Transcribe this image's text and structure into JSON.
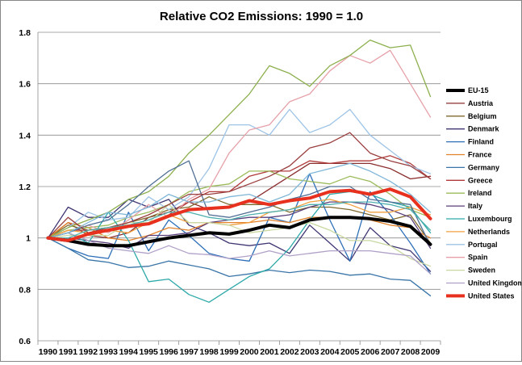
{
  "chart_data": {
    "type": "line",
    "title": "Relative CO2 Emissions: 1990 = 1.0",
    "xlabel": "",
    "ylabel": "",
    "ylim": [
      0.6,
      1.8
    ],
    "yticks": [
      "0.6",
      "0.8",
      "1",
      "1.2",
      "1.4",
      "1.6",
      "1.8"
    ],
    "grid": "horizontal",
    "legend": "right",
    "categories": [
      "1990",
      "1991",
      "1992",
      "1993",
      "1994",
      "1995",
      "1996",
      "1997",
      "1998",
      "1999",
      "2000",
      "2001",
      "2002",
      "2003",
      "2004",
      "2005",
      "2006",
      "2007",
      "2008",
      "2009"
    ],
    "series": [
      {
        "name": "EU-15",
        "color": "#000000",
        "width": 4,
        "values": [
          1.0,
          0.99,
          0.975,
          0.97,
          0.97,
          0.985,
          1.0,
          1.01,
          1.02,
          1.015,
          1.03,
          1.05,
          1.04,
          1.07,
          1.08,
          1.08,
          1.075,
          1.065,
          1.045,
          0.975
        ]
      },
      {
        "name": "Austria",
        "color": "#8B2E2E",
        "width": 1.3,
        "values": [
          1.0,
          1.06,
          1.01,
          1.0,
          1.02,
          1.08,
          1.1,
          1.14,
          1.11,
          1.12,
          1.14,
          1.19,
          1.24,
          1.29,
          1.29,
          1.29,
          1.29,
          1.27,
          1.23,
          1.24
        ]
      },
      {
        "name": "Belgium",
        "color": "#7F6A2E",
        "width": 1.3,
        "values": [
          1.0,
          1.05,
          1.03,
          1.04,
          1.06,
          1.08,
          1.11,
          1.12,
          1.16,
          1.13,
          1.13,
          1.13,
          1.1,
          1.12,
          1.12,
          1.11,
          1.09,
          1.07,
          1.09,
          0.98
        ]
      },
      {
        "name": "Denmark",
        "color": "#3F3572",
        "width": 1.3,
        "values": [
          1.0,
          1.12,
          1.08,
          1.08,
          1.15,
          1.12,
          1.15,
          1.05,
          1.02,
          0.98,
          0.97,
          0.98,
          0.94,
          1.05,
          0.98,
          0.91,
          1.04,
          0.97,
          0.95,
          0.87
        ]
      },
      {
        "name": "Finland",
        "color": "#2E70B8",
        "width": 1.3,
        "values": [
          1.0,
          0.96,
          0.93,
          0.92,
          1.1,
          0.95,
          1.07,
          1.01,
          0.94,
          0.92,
          0.91,
          1.08,
          1.06,
          1.25,
          1.07,
          0.91,
          1.18,
          1.09,
          0.98,
          0.86
        ]
      },
      {
        "name": "France",
        "color": "#E3822A",
        "width": 1.3,
        "values": [
          1.0,
          1.06,
          1.04,
          1.0,
          0.99,
          1.01,
          1.04,
          1.03,
          1.06,
          1.06,
          1.06,
          1.07,
          1.06,
          1.08,
          1.08,
          1.08,
          1.07,
          1.05,
          1.04,
          1.0
        ]
      },
      {
        "name": "Germany",
        "color": "#3A75A8",
        "width": 1.3,
        "values": [
          1.0,
          0.96,
          0.915,
          0.905,
          0.885,
          0.89,
          0.91,
          0.895,
          0.88,
          0.85,
          0.86,
          0.875,
          0.865,
          0.875,
          0.87,
          0.855,
          0.86,
          0.84,
          0.835,
          0.775
        ]
      },
      {
        "name": "Greece",
        "color": "#B03A3A",
        "width": 1.3,
        "values": [
          1.0,
          1.03,
          1.03,
          1.04,
          1.05,
          1.06,
          1.09,
          1.14,
          1.18,
          1.18,
          1.24,
          1.26,
          1.26,
          1.3,
          1.29,
          1.3,
          1.3,
          1.32,
          1.29,
          1.23
        ]
      },
      {
        "name": "Ireland",
        "color": "#9BBB59",
        "width": 1.3,
        "values": [
          1.0,
          1.03,
          1.04,
          1.05,
          1.08,
          1.1,
          1.13,
          1.18,
          1.2,
          1.21,
          1.26,
          1.26,
          1.23,
          1.22,
          1.21,
          1.24,
          1.22,
          1.17,
          1.11,
          1.08
        ]
      },
      {
        "name": "Italy",
        "color": "#5A3F7A",
        "width": 1.3,
        "values": [
          1.0,
          1.0,
          0.99,
          0.98,
          0.96,
          1.01,
          1.01,
          1.02,
          1.06,
          1.07,
          1.08,
          1.08,
          1.09,
          1.12,
          1.14,
          1.14,
          1.13,
          1.11,
          1.08,
          0.96
        ]
      },
      {
        "name": "Luxembourg",
        "color": "#2EA9A9",
        "width": 1.3,
        "values": [
          1.0,
          1.02,
          0.98,
          1.1,
          0.99,
          0.83,
          0.84,
          0.78,
          0.75,
          0.8,
          0.85,
          0.88,
          0.96,
          1.07,
          1.17,
          1.18,
          1.17,
          1.14,
          1.12,
          1.02
        ]
      },
      {
        "name": "Netherlands",
        "color": "#F0A040",
        "width": 1.3,
        "values": [
          1.0,
          1.03,
          1.02,
          1.03,
          1.02,
          1.06,
          1.09,
          1.06,
          1.06,
          1.05,
          1.06,
          1.1,
          1.11,
          1.14,
          1.15,
          1.13,
          1.1,
          1.1,
          1.12,
          1.09
        ]
      },
      {
        "name": "Portugal",
        "color": "#9DC3E6",
        "width": 1.3,
        "values": [
          1.0,
          1.04,
          1.1,
          1.07,
          1.08,
          1.16,
          1.11,
          1.16,
          1.27,
          1.44,
          1.44,
          1.4,
          1.5,
          1.41,
          1.44,
          1.5,
          1.4,
          1.34,
          1.28,
          1.25
        ]
      },
      {
        "name": "Spain",
        "color": "#E6A0A8",
        "width": 1.3,
        "values": [
          1.0,
          1.02,
          1.05,
          1.02,
          1.07,
          1.13,
          1.08,
          1.15,
          1.19,
          1.33,
          1.42,
          1.44,
          1.53,
          1.56,
          1.65,
          1.71,
          1.68,
          1.73,
          1.6,
          1.47
        ]
      },
      {
        "name": "Sweden",
        "color": "#C8D8A0",
        "width": 1.3,
        "values": [
          1.0,
          1.01,
          1.01,
          1.01,
          1.06,
          1.06,
          1.13,
          1.06,
          1.06,
          1.05,
          1.02,
          1.03,
          1.04,
          1.06,
          1.03,
          0.99,
          0.99,
          0.97,
          0.92,
          0.89
        ]
      },
      {
        "name": "United Kingdom",
        "color": "#B0A0C8",
        "width": 1.3,
        "values": [
          1.0,
          1.02,
          0.99,
          0.96,
          0.95,
          0.94,
          0.97,
          0.94,
          0.935,
          0.92,
          0.93,
          0.95,
          0.93,
          0.94,
          0.95,
          0.95,
          0.95,
          0.94,
          0.93,
          0.86
        ]
      },
      {
        "name": "United States",
        "color": "#E8301E",
        "width": 4,
        "values": [
          1.0,
          0.99,
          1.015,
          1.03,
          1.045,
          1.055,
          1.085,
          1.11,
          1.115,
          1.12,
          1.145,
          1.13,
          1.145,
          1.155,
          1.18,
          1.185,
          1.17,
          1.19,
          1.16,
          1.075
        ]
      },
      {
        "name": "",
        "color": "#8DB04E",
        "width": 1.3,
        "values": [
          1.0,
          1.04,
          1.07,
          1.1,
          1.15,
          1.18,
          1.24,
          1.33,
          1.4,
          1.48,
          1.56,
          1.67,
          1.64,
          1.59,
          1.67,
          1.71,
          1.77,
          1.74,
          1.75,
          1.55
        ]
      },
      {
        "name": "",
        "color": "#4F6E94",
        "width": 1.3,
        "values": [
          1.0,
          1.02,
          1.05,
          1.07,
          1.13,
          1.2,
          1.26,
          1.3,
          1.09,
          1.08,
          1.1,
          1.12,
          1.15,
          1.17,
          1.2,
          1.2,
          1.15,
          1.14,
          1.13,
          0.97
        ]
      },
      {
        "name": "",
        "color": "#9A3E3E",
        "width": 1.3,
        "values": [
          1.0,
          1.08,
          1.02,
          1.04,
          1.06,
          1.09,
          1.13,
          1.17,
          1.17,
          1.18,
          1.21,
          1.24,
          1.28,
          1.35,
          1.37,
          1.41,
          1.33,
          1.3,
          1.28,
          1.23
        ]
      },
      {
        "name": "",
        "color": "#7FB6D8",
        "width": 1.3,
        "values": [
          1.0,
          1.02,
          1.06,
          1.1,
          1.09,
          1.12,
          1.17,
          1.14,
          1.14,
          1.16,
          1.17,
          1.14,
          1.17,
          1.25,
          1.27,
          1.29,
          1.26,
          1.22,
          1.17,
          1.1
        ]
      },
      {
        "name": "",
        "color": "#4FB0B0",
        "width": 1.3,
        "values": [
          1.0,
          1.0,
          1.03,
          1.04,
          1.05,
          1.07,
          1.1,
          1.1,
          1.08,
          1.07,
          1.09,
          1.1,
          1.11,
          1.13,
          1.13,
          1.14,
          1.14,
          1.13,
          1.11,
          1.03
        ]
      }
    ]
  }
}
